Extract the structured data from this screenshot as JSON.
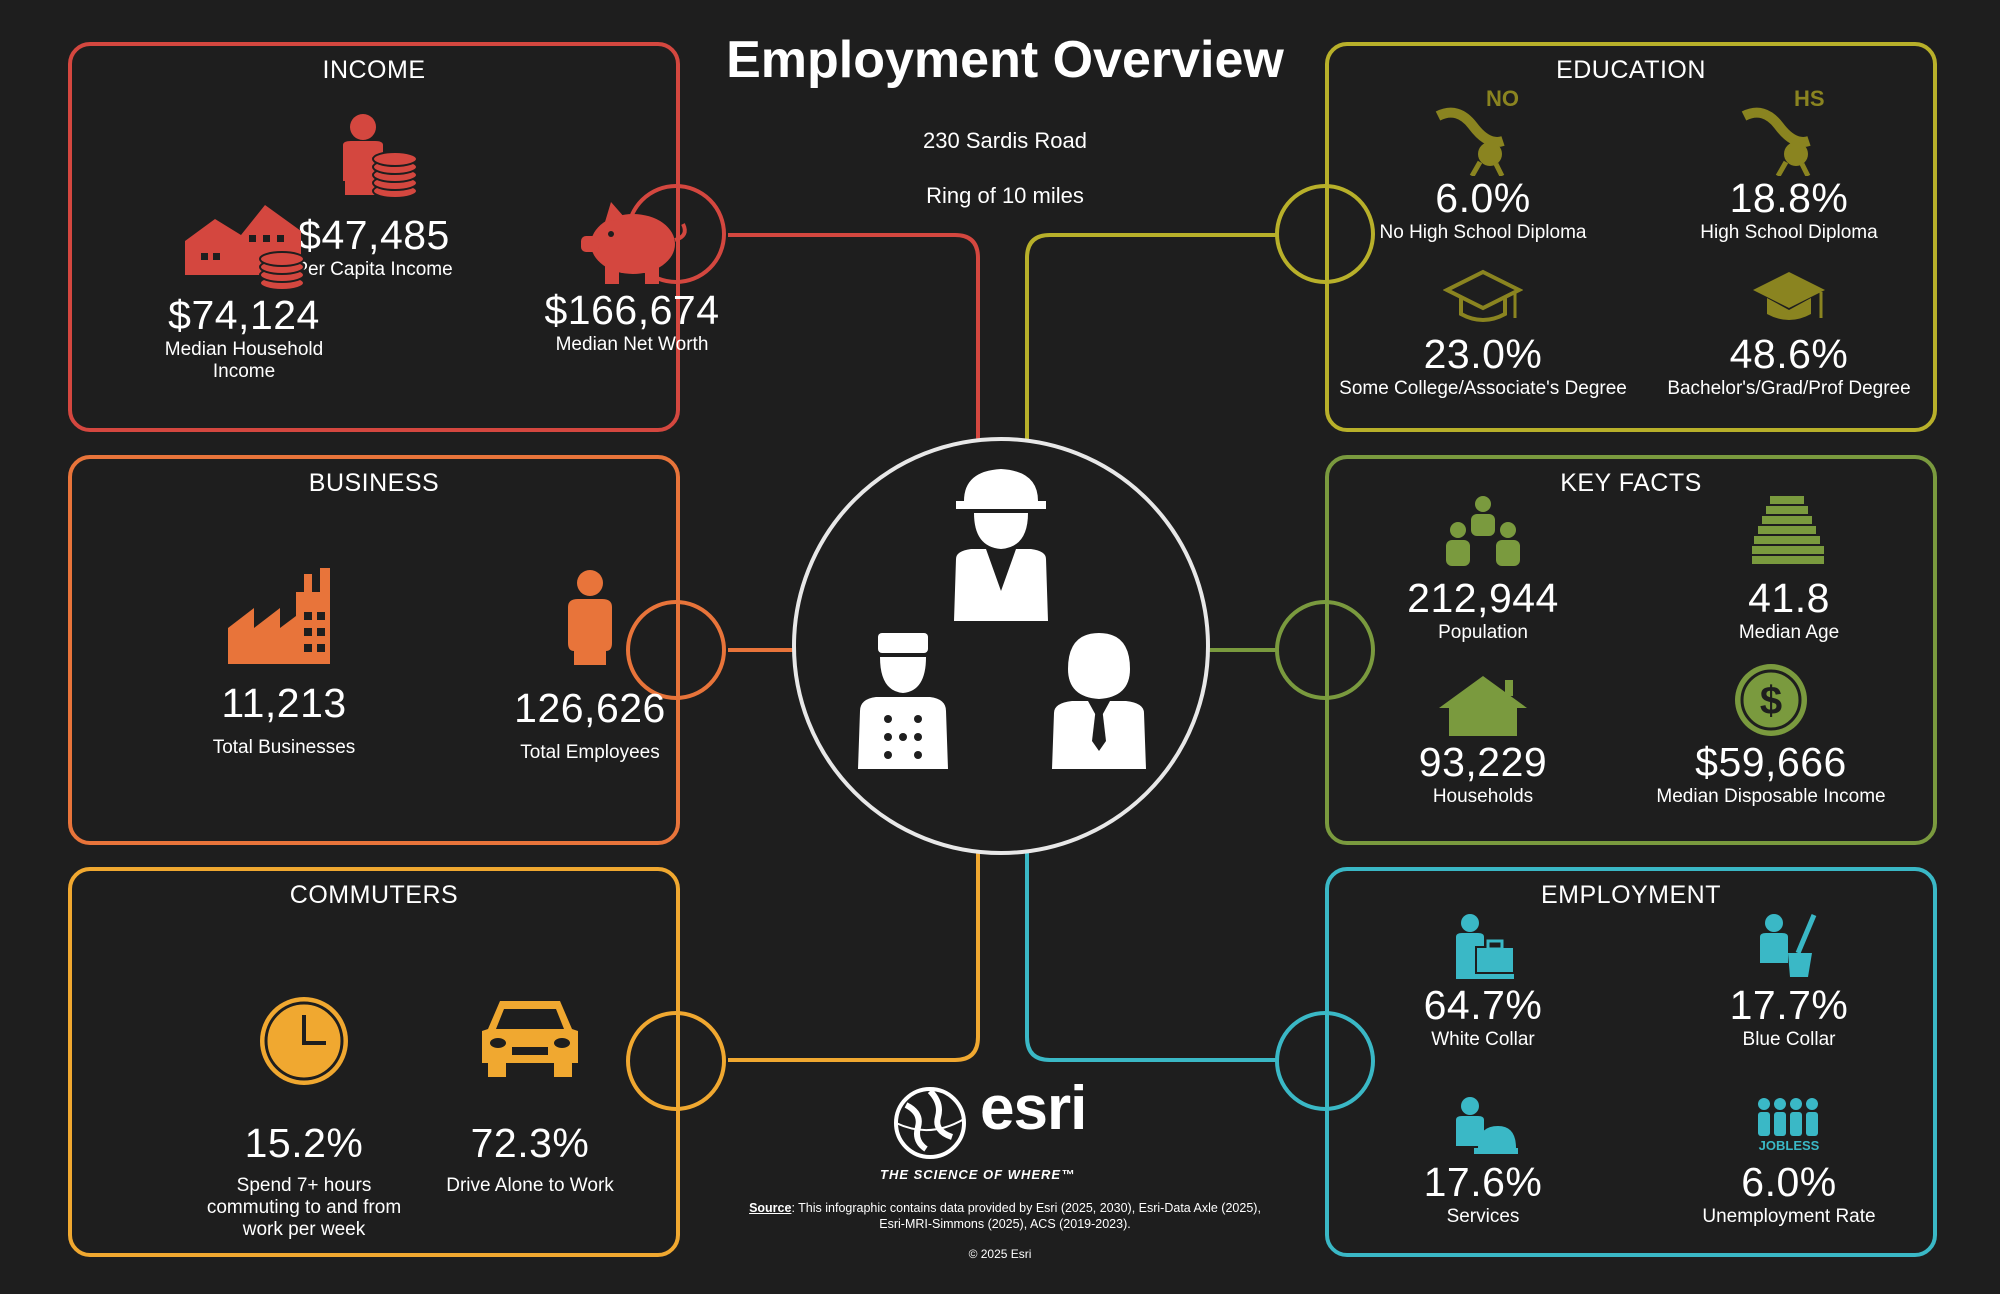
{
  "title": "Employment Overview",
  "address": "230 Sardis Road",
  "ring": "Ring of 10 miles",
  "colors": {
    "income": "#d4473f",
    "business": "#e8743a",
    "commuters": "#f0a830",
    "education": "#b8b02a",
    "key_facts": "#7a9a3e",
    "employment": "#3ab8c6"
  },
  "income": {
    "title": "INCOME",
    "per_capita": {
      "value": "$47,485",
      "label": "Per Capita Income",
      "icon": "person-coins-icon"
    },
    "median_household": {
      "value": "$74,124",
      "label": "Median Household Income",
      "icon": "house-coins-icon"
    },
    "median_net_worth": {
      "value": "$166,674",
      "label": "Median Net Worth",
      "icon": "piggy-bank-icon"
    }
  },
  "business": {
    "title": "BUSINESS",
    "total_businesses": {
      "value": "11,213",
      "label": "Total Businesses",
      "icon": "factory-icon"
    },
    "total_employees": {
      "value": "126,626",
      "label": "Total Employees",
      "icon": "person-icon"
    }
  },
  "commuters": {
    "title": "COMMUTERS",
    "long_commute": {
      "value": "15.2%",
      "label": "Spend 7+ hours commuting to and from work per week",
      "icon": "clock-icon"
    },
    "drive_alone": {
      "value": "72.3%",
      "label": "Drive Alone to Work",
      "icon": "car-icon"
    }
  },
  "education": {
    "title": "EDUCATION",
    "no_hs": {
      "value": "6.0%",
      "label": "No High School Diploma",
      "badge": "NO",
      "icon": "diploma-no-icon"
    },
    "hs": {
      "value": "18.8%",
      "label": "High School Diploma",
      "badge": "HS",
      "icon": "diploma-hs-icon"
    },
    "some_college": {
      "value": "23.0%",
      "label": "Some College/Associate's Degree",
      "icon": "grad-cap-outline-icon"
    },
    "bachelors": {
      "value": "48.6%",
      "label": "Bachelor's/Grad/Prof Degree",
      "icon": "grad-cap-icon"
    }
  },
  "key_facts": {
    "title": "KEY FACTS",
    "population": {
      "value": "212,944",
      "label": "Population",
      "icon": "people-group-icon"
    },
    "median_age": {
      "value": "41.8",
      "label": "Median Age",
      "icon": "stacked-bars-icon"
    },
    "households": {
      "value": "93,229",
      "label": "Households",
      "icon": "house-icon"
    },
    "disposable_income": {
      "value": "$59,666",
      "label": "Median Disposable Income",
      "icon": "dollar-coin-icon"
    }
  },
  "employment": {
    "title": "EMPLOYMENT",
    "white_collar": {
      "value": "64.7%",
      "label": "White Collar",
      "icon": "briefcase-worker-icon"
    },
    "blue_collar": {
      "value": "17.7%",
      "label": "Blue Collar",
      "icon": "cleaner-worker-icon"
    },
    "services": {
      "value": "17.6%",
      "label": "Services",
      "icon": "service-bell-worker-icon"
    },
    "unemployment": {
      "value": "6.0%",
      "label": "Unemployment Rate",
      "badge": "JOBLESS",
      "icon": "jobless-group-icon"
    }
  },
  "center_icon": "workers-group-icon",
  "logo": {
    "wordmark": "esri",
    "tagline": "THE SCIENCE OF WHERE™",
    "icon": "globe-icon"
  },
  "source": {
    "label": "Source",
    "text": ": This infographic contains data provided by Esri (2025, 2030), Esri-Data Axle (2025), Esri-MRI-Simmons (2025), ACS (2019-2023)."
  },
  "copyright": "© 2025 Esri"
}
